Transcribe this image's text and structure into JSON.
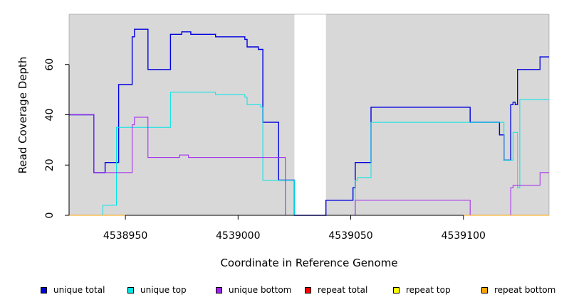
{
  "chart_data": {
    "type": "line",
    "title": "",
    "xlabel": "Coordinate in Reference Genome",
    "ylabel": "Read Coverage Depth",
    "xlim": [
      4538925,
      4539138
    ],
    "ylim": [
      0,
      80
    ],
    "xticks": [
      4538950,
      4539000,
      4539050,
      4539100
    ],
    "xtick_labels": [
      "4538950",
      "4539000",
      "4539050",
      "4539100"
    ],
    "yticks": [
      0,
      20,
      40,
      60
    ],
    "ytick_labels": [
      "0",
      "20",
      "40",
      "60"
    ],
    "gap_region": [
      4539025,
      4539039
    ],
    "plot_background": "#d8d8d8",
    "gap_background": "#ffffff",
    "legend_position": "bottom",
    "series": [
      {
        "name": "unique total",
        "color": "#0000e0",
        "step": true,
        "x": [
          4538925,
          4538936,
          4538941,
          4538947,
          4538953,
          4538954,
          4538960,
          4538970,
          4538975,
          4538979,
          4538990,
          4539003,
          4539004,
          4539009,
          4539011,
          4539018,
          4539025,
          4539039,
          4539051,
          4539052,
          4539059,
          4539103,
          4539116,
          4539118,
          4539121,
          4539122,
          4539123,
          4539124,
          4539134
        ],
        "y": [
          40,
          17,
          21,
          52,
          71,
          74,
          58,
          72,
          73,
          72,
          71,
          70,
          67,
          66,
          37,
          14,
          0,
          6,
          11,
          21,
          43,
          37,
          32,
          22,
          44,
          45,
          44,
          58,
          63
        ]
      },
      {
        "name": "unique top",
        "color": "#00e5e5",
        "step": true,
        "x": [
          4538925,
          4538940,
          4538946,
          4538970,
          4538990,
          4539003,
          4539004,
          4539010,
          4539011,
          4539018,
          4539025,
          4539039,
          4539052,
          4539053,
          4539059,
          4539118,
          4539122,
          4539124,
          4539125
        ],
        "y": [
          0,
          4,
          35,
          49,
          48,
          47,
          44,
          43,
          14,
          14,
          0,
          0,
          14,
          15,
          37,
          22,
          33,
          11,
          46
        ]
      },
      {
        "name": "unique bottom",
        "color": "#a020f0",
        "step": true,
        "x": [
          4538925,
          4538936,
          4538953,
          4538954,
          4538960,
          4538974,
          4538978,
          4539021,
          4539025,
          4539039,
          4539052,
          4539103,
          4539121,
          4539122,
          4539134
        ],
        "y": [
          40,
          17,
          36,
          39,
          23,
          24,
          23,
          0,
          0,
          0,
          6,
          0,
          11,
          12,
          17
        ]
      },
      {
        "name": "repeat total",
        "color": "#ff0000",
        "step": true,
        "x": [
          4538925,
          4539138
        ],
        "y": [
          0,
          0
        ]
      },
      {
        "name": "repeat top",
        "color": "#ffff00",
        "step": true,
        "x": [
          4538925,
          4539138
        ],
        "y": [
          0,
          0
        ]
      },
      {
        "name": "repeat bottom",
        "color": "#ffa500",
        "step": true,
        "x": [
          4538925,
          4539138
        ],
        "y": [
          0,
          0
        ]
      }
    ]
  }
}
